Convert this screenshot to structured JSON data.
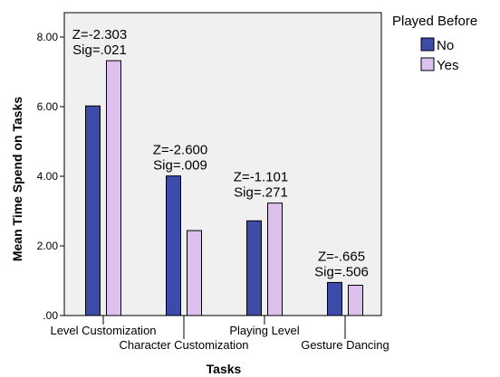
{
  "chart_data": {
    "type": "bar",
    "categories": [
      "Level Customization",
      "Character Customization",
      "Playing Level",
      "Gesture Dancing"
    ],
    "series": [
      {
        "name": "No",
        "values": [
          6.02,
          4.01,
          2.72,
          0.95
        ],
        "color": "#3c4aa8"
      },
      {
        "name": "Yes",
        "values": [
          7.32,
          2.44,
          3.23,
          0.87
        ],
        "color": "#dcc1ee"
      }
    ],
    "annotations": [
      {
        "category": "Level Customization",
        "lines": [
          "Z=-2.303",
          "Sig=.021"
        ]
      },
      {
        "category": "Character Customization",
        "lines": [
          "Z=-2.600",
          "Sig=.009"
        ]
      },
      {
        "category": "Playing Level",
        "lines": [
          "Z=-1.101",
          "Sig=.271"
        ]
      },
      {
        "category": "Gesture Dancing",
        "lines": [
          "Z=-.665",
          "Sig=.506"
        ]
      }
    ],
    "title": "",
    "xlabel": "Tasks",
    "ylabel": "Mean Time Spend on Tasks",
    "ylim": [
      0,
      8.7
    ],
    "yticks": [
      0,
      2,
      4,
      6,
      8
    ],
    "ytick_labels": [
      ".00",
      "2.00",
      "4.00",
      "6.00",
      "8.00"
    ],
    "legend_title": "Played Before",
    "legend_position": "right",
    "plot_background": "#f0f0f0",
    "grid": false
  }
}
